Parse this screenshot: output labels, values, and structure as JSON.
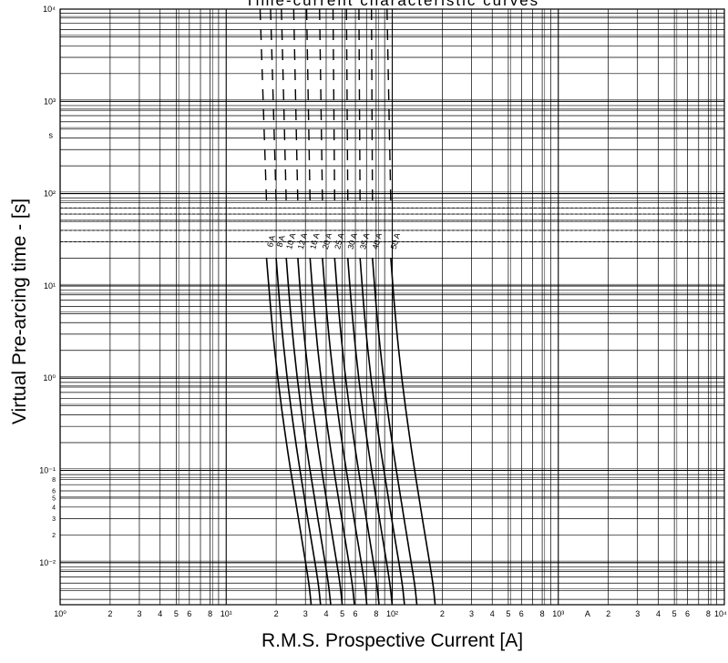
{
  "header": {
    "title_fragment": "Time-current characteristic curves"
  },
  "chart_data": {
    "type": "line",
    "xlabel": "R.M.S. Prospective Current [A]",
    "ylabel": "Virtual Pre-arcing time - [s]",
    "x_scale": "log",
    "y_scale": "log",
    "xlim": [
      1,
      10000
    ],
    "ylim": [
      0.0035,
      10000
    ],
    "grid": true,
    "x_decade_labels": [
      "10⁰",
      "10¹",
      "10²",
      "10³",
      "10⁴"
    ],
    "x_minor_labels": [
      "2",
      "3",
      "4",
      "5",
      "6",
      "8"
    ],
    "x_special_label": "A",
    "y_decade_labels": [
      "10⁴",
      "10³",
      "10²",
      "10¹",
      "10⁰",
      "10⁻¹",
      "10⁻²"
    ],
    "y_minor_labels": [
      "8",
      "6",
      "5",
      "4",
      "3",
      "2"
    ],
    "y_stray_label": "s",
    "series": [
      {
        "name": "6 A",
        "x": [
          17.5,
          18.6,
          20.4,
          23.0,
          26.0,
          29.0,
          31.5,
          32.5
        ],
        "y": [
          20,
          5,
          1,
          0.2,
          0.05,
          0.015,
          0.006,
          0.0035
        ]
      },
      {
        "name": "8 A",
        "x": [
          20.0,
          21.2,
          23.2,
          26.2,
          29.6,
          33.0,
          35.9,
          37.0
        ],
        "y": [
          20,
          5,
          1,
          0.2,
          0.05,
          0.015,
          0.006,
          0.0035
        ]
      },
      {
        "name": "10 A",
        "x": [
          23.0,
          24.4,
          26.7,
          30.1,
          34.0,
          38.0,
          41.3,
          42.6
        ],
        "y": [
          20,
          5,
          1,
          0.2,
          0.05,
          0.015,
          0.006,
          0.0035
        ]
      },
      {
        "name": "12 A",
        "x": [
          27.0,
          28.6,
          31.3,
          35.4,
          40.0,
          44.6,
          48.5,
          50.0
        ],
        "y": [
          20,
          5,
          1,
          0.2,
          0.05,
          0.015,
          0.006,
          0.0035
        ]
      },
      {
        "name": "16 A",
        "x": [
          32.0,
          33.9,
          37.1,
          41.9,
          47.4,
          52.8,
          57.4,
          59.2
        ],
        "y": [
          20,
          5,
          1,
          0.2,
          0.05,
          0.015,
          0.006,
          0.0035
        ]
      },
      {
        "name": "20 A",
        "x": [
          38.0,
          40.3,
          44.1,
          49.8,
          56.2,
          62.7,
          68.2,
          70.3
        ],
        "y": [
          20,
          5,
          1,
          0.2,
          0.05,
          0.015,
          0.006,
          0.0035
        ]
      },
      {
        "name": "25 A",
        "x": [
          45.0,
          47.7,
          52.2,
          59.0,
          66.6,
          74.3,
          80.8,
          83.3
        ],
        "y": [
          20,
          5,
          1,
          0.2,
          0.05,
          0.015,
          0.006,
          0.0035
        ]
      },
      {
        "name": "30 A",
        "x": [
          54.0,
          57.2,
          62.6,
          70.7,
          79.9,
          89.1,
          96.9,
          99.9
        ],
        "y": [
          20,
          5,
          1,
          0.2,
          0.05,
          0.015,
          0.006,
          0.0035
        ]
      },
      {
        "name": "35 A",
        "x": [
          64.0,
          67.8,
          74.2,
          83.8,
          94.7,
          105.6,
          114.9,
          118.4
        ],
        "y": [
          20,
          5,
          1,
          0.2,
          0.05,
          0.015,
          0.006,
          0.0035
        ]
      },
      {
        "name": "40 A",
        "x": [
          76.0,
          80.6,
          88.2,
          99.6,
          112.5,
          125.4,
          136.4,
          140.6
        ],
        "y": [
          20,
          5,
          1,
          0.2,
          0.05,
          0.015,
          0.006,
          0.0035
        ]
      },
      {
        "name": "50 A",
        "x": [
          98.0,
          103.9,
          113.7,
          128.4,
          145.0,
          161.7,
          175.9,
          181.3
        ],
        "y": [
          20,
          5,
          1,
          0.2,
          0.05,
          0.015,
          0.006,
          0.0035
        ]
      }
    ],
    "dashed_upper": {
      "x_top": [
        16.0,
        18.5,
        21.5,
        25.5,
        30.5,
        36.5,
        44.0,
        53.0,
        63.0,
        75.0,
        93.0
      ],
      "x_bottom": [
        17.5,
        20.0,
        23.0,
        27.0,
        32.0,
        38.0,
        45.0,
        54.0,
        64.0,
        76.0,
        98.0
      ],
      "y_range": [
        80,
        10000
      ]
    },
    "dashed_horizontal_y": [
      70,
      60,
      50,
      40,
      30
    ]
  }
}
